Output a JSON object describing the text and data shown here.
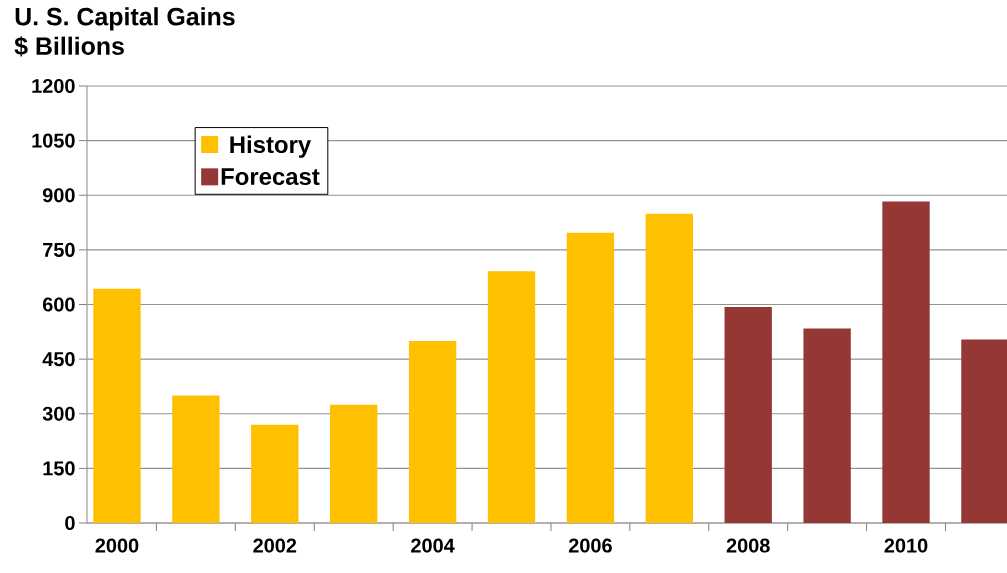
{
  "chart_data": {
    "type": "bar",
    "title": "U. S. Capital Gains",
    "ylabel": "$ Billions",
    "categories": [
      "2000",
      null,
      "2002",
      null,
      "2004",
      null,
      "2006",
      null,
      "2008",
      null,
      "2010",
      null
    ],
    "series": [
      {
        "name": "History",
        "color": "#ffc000",
        "values": [
          643,
          350,
          270,
          325,
          500,
          691,
          797,
          849,
          null,
          null,
          null,
          null
        ]
      },
      {
        "name": "Forecast",
        "color": "#953735",
        "values": [
          null,
          null,
          null,
          null,
          null,
          null,
          null,
          null,
          593,
          534,
          883,
          504
        ]
      }
    ],
    "ylim": [
      0,
      1200
    ],
    "yticks": [
      0,
      150,
      300,
      450,
      600,
      750,
      900,
      1050,
      1200
    ],
    "grid": "y",
    "legend": "top left"
  }
}
